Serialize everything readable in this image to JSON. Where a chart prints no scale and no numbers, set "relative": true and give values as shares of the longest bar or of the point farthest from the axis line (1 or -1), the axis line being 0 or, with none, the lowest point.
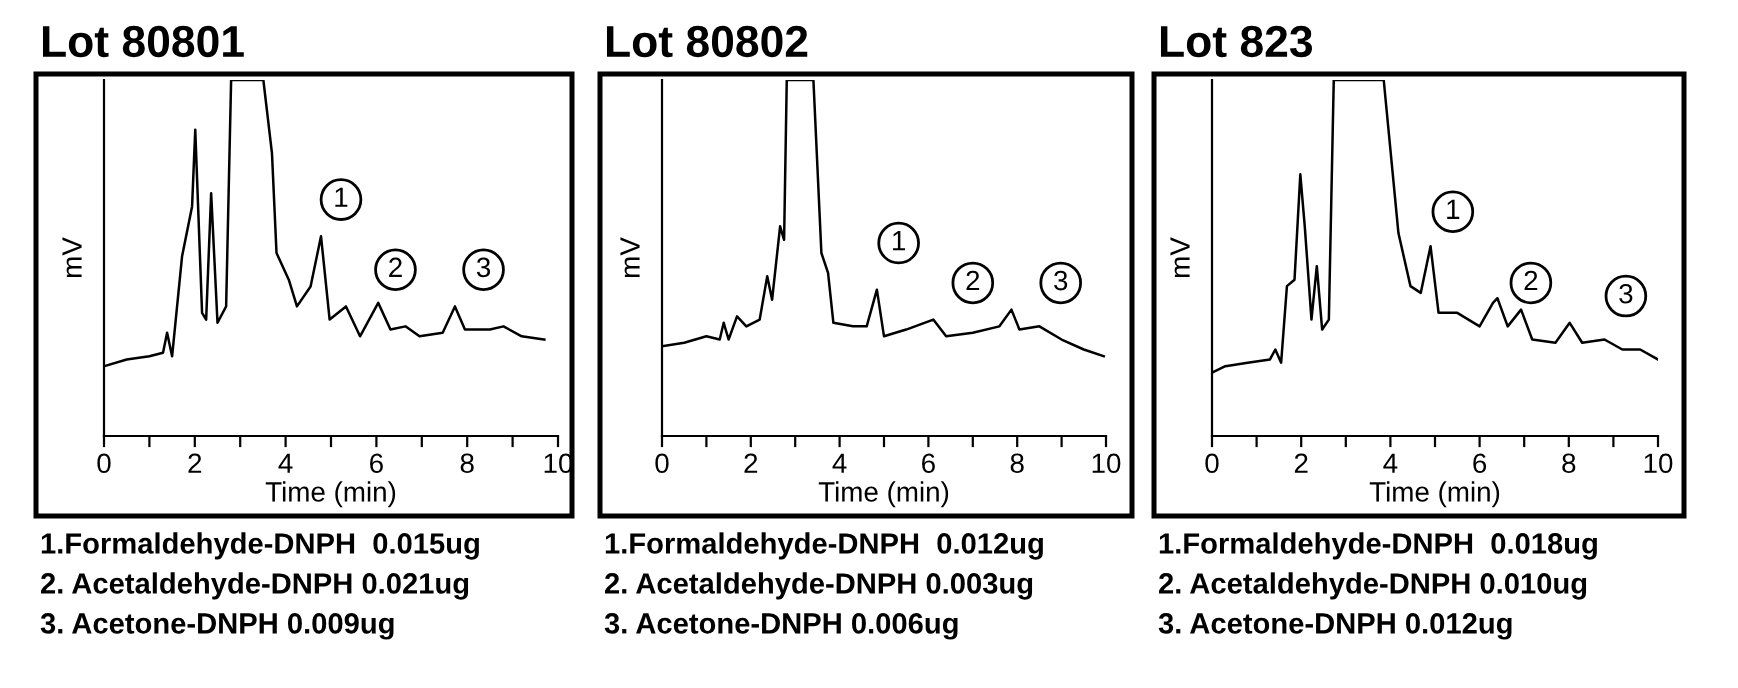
{
  "chart_data": [
    {
      "type": "line",
      "title": "Lot 80801",
      "xlabel": "Time (min)",
      "ylabel": "mV",
      "relative": true,
      "xlim": [
        0,
        10
      ],
      "xticks": [
        0,
        {
          "value": 1,
          "label": null
        },
        2,
        {
          "value": 3,
          "label": null
        },
        4,
        {
          "value": 5,
          "label": null
        },
        6,
        {
          "value": 7,
          "label": null
        },
        8,
        {
          "value": 9,
          "label": null
        },
        10
      ],
      "grid": false,
      "legend": false,
      "series": [
        {
          "color": "#000000",
          "x": [
            0,
            0.5,
            1.0,
            1.3,
            1.39,
            1.5,
            1.72,
            1.94,
            2.01,
            2.16,
            2.25,
            2.36,
            2.5,
            2.69,
            2.8,
            3.51,
            3.7,
            3.8,
            4.07,
            4.25,
            4.55,
            4.78,
            4.97,
            5.33,
            5.64,
            6.04,
            6.31,
            6.64,
            6.95,
            7.46,
            7.73,
            7.95,
            8.5,
            8.8,
            9.2,
            9.7
          ],
          "values": [
            0.196,
            0.215,
            0.224,
            0.234,
            0.29,
            0.224,
            0.505,
            0.645,
            0.86,
            0.346,
            0.327,
            0.682,
            0.318,
            0.364,
            1.0,
            1.0,
            0.794,
            0.514,
            0.439,
            0.364,
            0.42,
            0.561,
            0.327,
            0.364,
            0.28,
            0.374,
            0.299,
            0.308,
            0.28,
            0.29,
            0.364,
            0.299,
            0.299,
            0.308,
            0.28,
            0.271
          ]
        }
      ],
      "annotations": [
        {
          "text": "1",
          "x": 5.22,
          "y": 0.664
        },
        {
          "text": "2",
          "x": 6.42,
          "y": 0.467
        },
        {
          "text": "3",
          "x": 8.36,
          "y": 0.467
        },
        "1.Formaldehyde-DNPH  0.015ug",
        "2. Acetaldehyde-DNPH 0.021ug",
        "3. Acetone-DNPH 0.009ug"
      ]
    },
    {
      "type": "line",
      "title": "Lot 80802",
      "xlabel": "Time (min)",
      "ylabel": "mV",
      "relative": true,
      "xlim": [
        0,
        10
      ],
      "xticks": [
        0,
        {
          "value": 1,
          "label": null
        },
        2,
        {
          "value": 3,
          "label": null
        },
        4,
        {
          "value": 5,
          "label": null
        },
        6,
        {
          "value": 7,
          "label": null
        },
        8,
        {
          "value": 9,
          "label": null
        },
        10
      ],
      "grid": false,
      "legend": false,
      "series": [
        {
          "color": "#000000",
          "x": [
            0,
            0.5,
            1.0,
            1.3,
            1.39,
            1.5,
            1.69,
            1.9,
            2.2,
            2.37,
            2.48,
            2.66,
            2.75,
            2.81,
            3.41,
            3.59,
            3.74,
            3.86,
            4.3,
            4.61,
            4.84,
            5.0,
            5.5,
            6.11,
            6.4,
            7.0,
            7.6,
            7.87,
            8.05,
            8.5,
            9.0,
            9.5,
            9.95
          ],
          "values": [
            0.252,
            0.262,
            0.28,
            0.271,
            0.318,
            0.271,
            0.336,
            0.308,
            0.327,
            0.449,
            0.383,
            0.589,
            0.551,
            1.0,
            1.0,
            0.514,
            0.458,
            0.318,
            0.308,
            0.308,
            0.411,
            0.28,
            0.299,
            0.327,
            0.28,
            0.29,
            0.308,
            0.355,
            0.299,
            0.308,
            0.271,
            0.243,
            0.224
          ]
        }
      ],
      "annotations": [
        {
          "text": "1",
          "x": 5.33,
          "y": 0.542
        },
        {
          "text": "2",
          "x": 7.0,
          "y": 0.43
        },
        {
          "text": "3",
          "x": 8.98,
          "y": 0.43
        },
        "1.Formaldehyde-DNPH  0.012ug",
        "2. Acetaldehyde-DNPH 0.003ug",
        "3. Acetone-DNPH 0.006ug"
      ]
    },
    {
      "type": "line",
      "title": "Lot 823",
      "xlabel": "Time (min)",
      "ylabel": "mV",
      "relative": true,
      "xlim": [
        0,
        10
      ],
      "xticks": [
        0,
        {
          "value": 1,
          "label": null
        },
        2,
        {
          "value": 3,
          "label": null
        },
        4,
        {
          "value": 5,
          "label": null
        },
        6,
        {
          "value": 7,
          "label": null
        },
        8,
        {
          "value": 9,
          "label": null
        },
        10
      ],
      "grid": false,
      "legend": false,
      "series": [
        {
          "color": "#000000",
          "x": [
            0,
            0.3,
            0.8,
            1.3,
            1.42,
            1.55,
            1.68,
            1.85,
            1.98,
            2.08,
            2.23,
            2.35,
            2.47,
            2.62,
            2.73,
            3.85,
            4.18,
            4.45,
            4.68,
            4.9,
            5.08,
            5.5,
            6.0,
            6.3,
            6.4,
            6.63,
            6.93,
            7.18,
            7.7,
            8.02,
            8.3,
            8.8,
            9.2,
            9.6,
            10.0
          ],
          "values": [
            0.178,
            0.196,
            0.206,
            0.215,
            0.243,
            0.206,
            0.421,
            0.439,
            0.735,
            0.589,
            0.327,
            0.477,
            0.299,
            0.327,
            1.0,
            1.0,
            0.57,
            0.421,
            0.402,
            0.533,
            0.346,
            0.346,
            0.308,
            0.374,
            0.387,
            0.308,
            0.355,
            0.271,
            0.262,
            0.318,
            0.262,
            0.271,
            0.243,
            0.243,
            0.215
          ]
        }
      ],
      "annotations": [
        {
          "text": "1",
          "x": 5.4,
          "y": 0.63
        },
        {
          "text": "2",
          "x": 7.15,
          "y": 0.43
        },
        {
          "text": "3",
          "x": 9.28,
          "y": 0.393
        },
        "1.Formaldehyde-DNPH  0.018ug",
        "2. Acetaldehyde-DNPH 0.010ug",
        "3. Acetone-DNPH 0.012ug"
      ]
    }
  ]
}
